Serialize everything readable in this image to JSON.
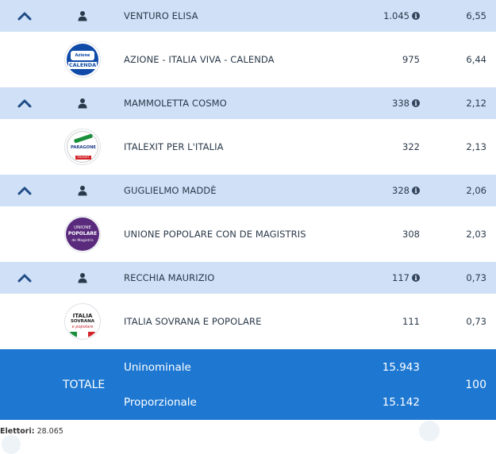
{
  "rows": [
    {
      "type": "candidate",
      "name": "VENTURO ELISA",
      "votes": "1.045",
      "pct": "6,55"
    },
    {
      "type": "party",
      "name": "AZIONE - ITALIA VIVA - CALENDA",
      "votes": "975",
      "pct": "6,44",
      "logo": {
        "top": "Azione",
        "mid": "CALENDA"
      }
    },
    {
      "type": "candidate",
      "name": "MAMMOLETTA COSMO",
      "votes": "338",
      "pct": "2,12"
    },
    {
      "type": "party",
      "name": "ITALEXIT PER L'ITALIA",
      "votes": "322",
      "pct": "2,13",
      "logo": {
        "mid": "PARAGONE",
        "small": "ITALEXIT"
      }
    },
    {
      "type": "candidate",
      "name": "GUGLIELMO MADDÈ",
      "votes": "328",
      "pct": "2,06"
    },
    {
      "type": "party",
      "name": "UNIONE POPOLARE CON DE MAGISTRIS",
      "votes": "308",
      "pct": "2,03",
      "logo": {
        "a": "UNIONE",
        "b": "POPOLARE",
        "c": "de Magistris"
      }
    },
    {
      "type": "candidate",
      "name": "RECCHIA MAURIZIO",
      "votes": "117",
      "pct": "0,73"
    },
    {
      "type": "party",
      "name": "ITALIA SOVRANA E POPOLARE",
      "votes": "111",
      "pct": "0,73",
      "logo": {
        "a": "ITALIA",
        "b": "SOVRANA",
        "c": "e popolare"
      }
    }
  ],
  "total": {
    "label": "TOTALE",
    "uninominale_label": "Uninominale",
    "uninominale_votes": "15.943",
    "proporzionale_label": "Proporzionale",
    "proporzionale_votes": "15.142",
    "pct": "100"
  },
  "footer": {
    "label": "Elettori:",
    "value": "28.065"
  },
  "icons": {
    "expand": "chevron-up-icon",
    "candidate": "person-icon",
    "info": "info-icon"
  },
  "colors": {
    "candidate_row": "#cfe0f7",
    "total_bg": "#1e78d2",
    "chevron": "#1f4c86"
  }
}
